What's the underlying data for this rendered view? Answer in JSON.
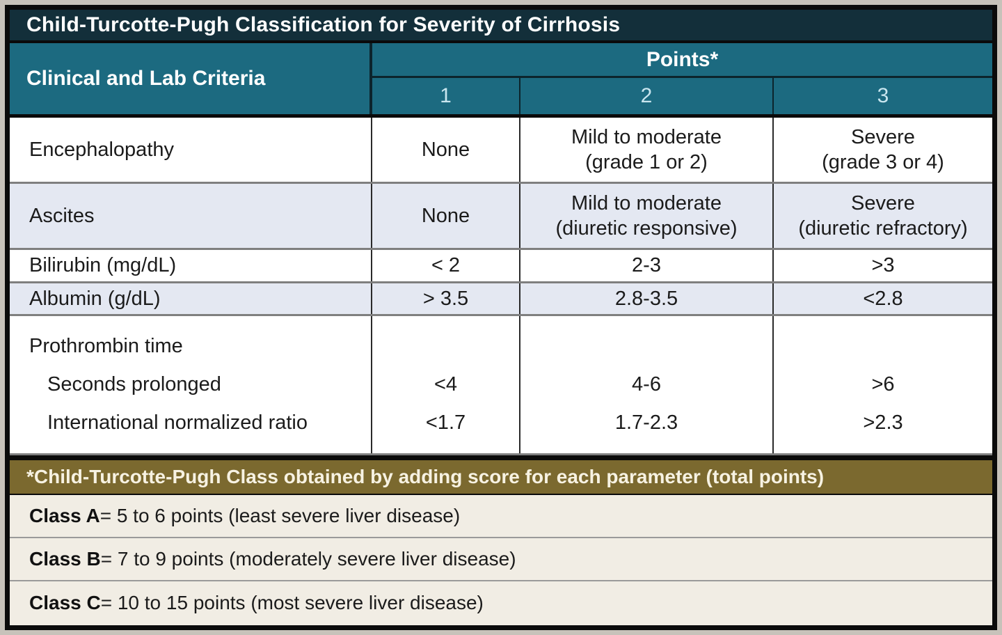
{
  "title": "Child-Turcotte-Pugh Classification for Severity of Cirrhosis",
  "header": {
    "criteria_label": "Clinical and Lab Criteria",
    "points_label": "Points*",
    "point_columns": [
      "1",
      "2",
      "3"
    ]
  },
  "criteria_rows": [
    {
      "label": "Encephalopathy",
      "points": [
        [
          "None"
        ],
        [
          "Mild to moderate",
          "(grade 1 or 2)"
        ],
        [
          "Severe",
          "(grade 3 or 4)"
        ]
      ]
    },
    {
      "label": "Ascites",
      "points": [
        [
          "None"
        ],
        [
          "Mild to moderate",
          "(diuretic responsive)"
        ],
        [
          "Severe",
          "(diuretic refractory)"
        ]
      ]
    },
    {
      "label": "Bilirubin (mg/dL)",
      "points": [
        [
          "< 2"
        ],
        [
          "2-3"
        ],
        [
          ">3"
        ]
      ]
    },
    {
      "label": "Albumin (g/dL)",
      "points": [
        [
          "> 3.5"
        ],
        [
          "2.8-3.5"
        ],
        [
          "<2.8"
        ]
      ]
    },
    {
      "label_lines": [
        "Prothrombin time",
        "Seconds prolonged",
        "International normalized ratio"
      ],
      "points": [
        [
          "",
          "<4",
          "<1.7"
        ],
        [
          "",
          "4-6",
          "1.7-2.3"
        ],
        [
          "",
          ">6",
          ">2.3"
        ]
      ]
    }
  ],
  "footnote": "*Child-Turcotte-Pugh Class obtained by adding score for each parameter (total points)",
  "classes": [
    {
      "name": "Class A",
      "description": " = 5 to 6 points (least severe liver disease)"
    },
    {
      "name": "Class B",
      "description": " = 7 to 9 points (moderately severe liver disease)"
    },
    {
      "name": "Class C",
      "description": " = 10 to 15 points (most severe liver disease)"
    }
  ],
  "colors": {
    "title_bar": "#132f3a",
    "header_teal": "#1c6a80",
    "lavender_row": "#e4e8f2",
    "gold_banner": "#7b692f",
    "class_row_bg": "#f1ede4",
    "outer_border": "#0b0b0b"
  }
}
